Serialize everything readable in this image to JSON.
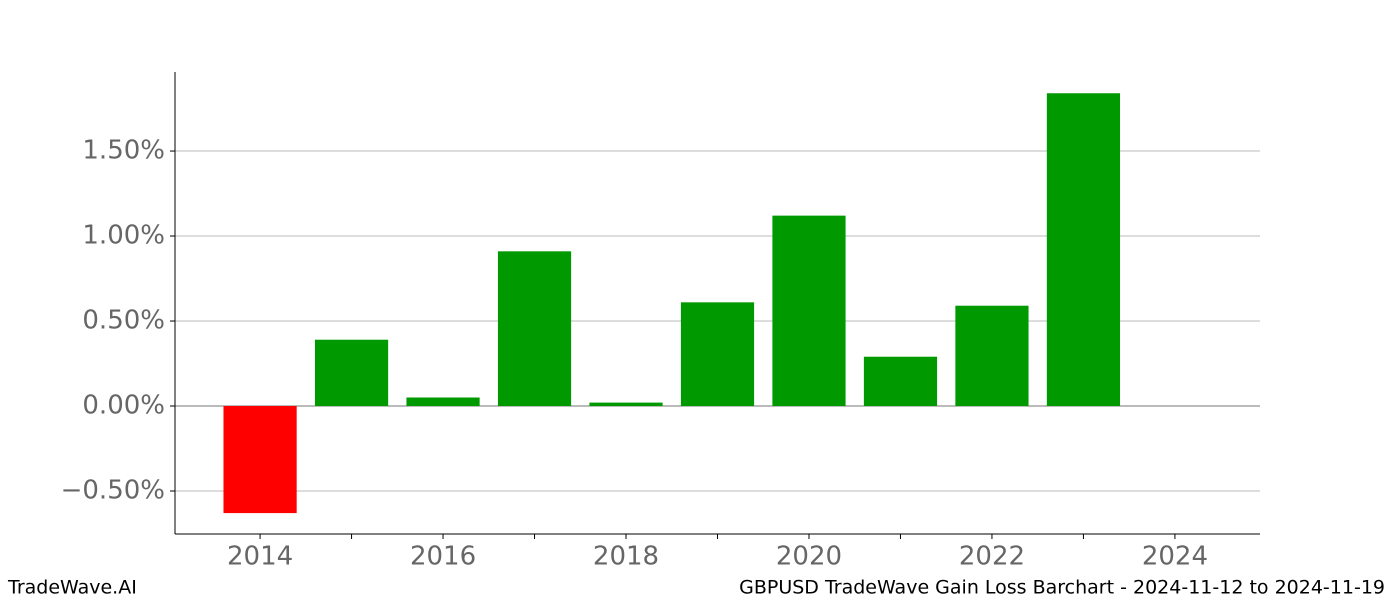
{
  "chart_data": {
    "type": "bar",
    "title": "GBPUSD TradeWave Gain Loss Barchart - 2024-11-12 to 2024-11-19",
    "watermark": "TradeWave.AI",
    "x": [
      2014,
      2015,
      2016,
      2017,
      2018,
      2019,
      2020,
      2021,
      2022,
      2023
    ],
    "values": [
      -0.63,
      0.39,
      0.05,
      0.91,
      0.02,
      0.61,
      1.12,
      0.29,
      0.59,
      1.84
    ],
    "colors": [
      "#ff0000",
      "#009900",
      "#009900",
      "#009900",
      "#009900",
      "#009900",
      "#009900",
      "#009900",
      "#009900",
      "#009900"
    ],
    "xlim": [
      2013.07,
      2024.93
    ],
    "xticks": [
      2014,
      2016,
      2018,
      2020,
      2022,
      2024
    ],
    "xminorticks": [
      2015,
      2017,
      2019,
      2021,
      2023
    ],
    "ylim": [
      -0.753,
      1.965
    ],
    "yticks": [
      {
        "value": -0.5,
        "label": "−0.50%"
      },
      {
        "value": 0,
        "label": "0.00%"
      },
      {
        "value": 0.5,
        "label": "0.50%"
      },
      {
        "value": 1.0,
        "label": "1.00%"
      },
      {
        "value": 1.5,
        "label": "1.50%"
      }
    ],
    "grid": true
  }
}
